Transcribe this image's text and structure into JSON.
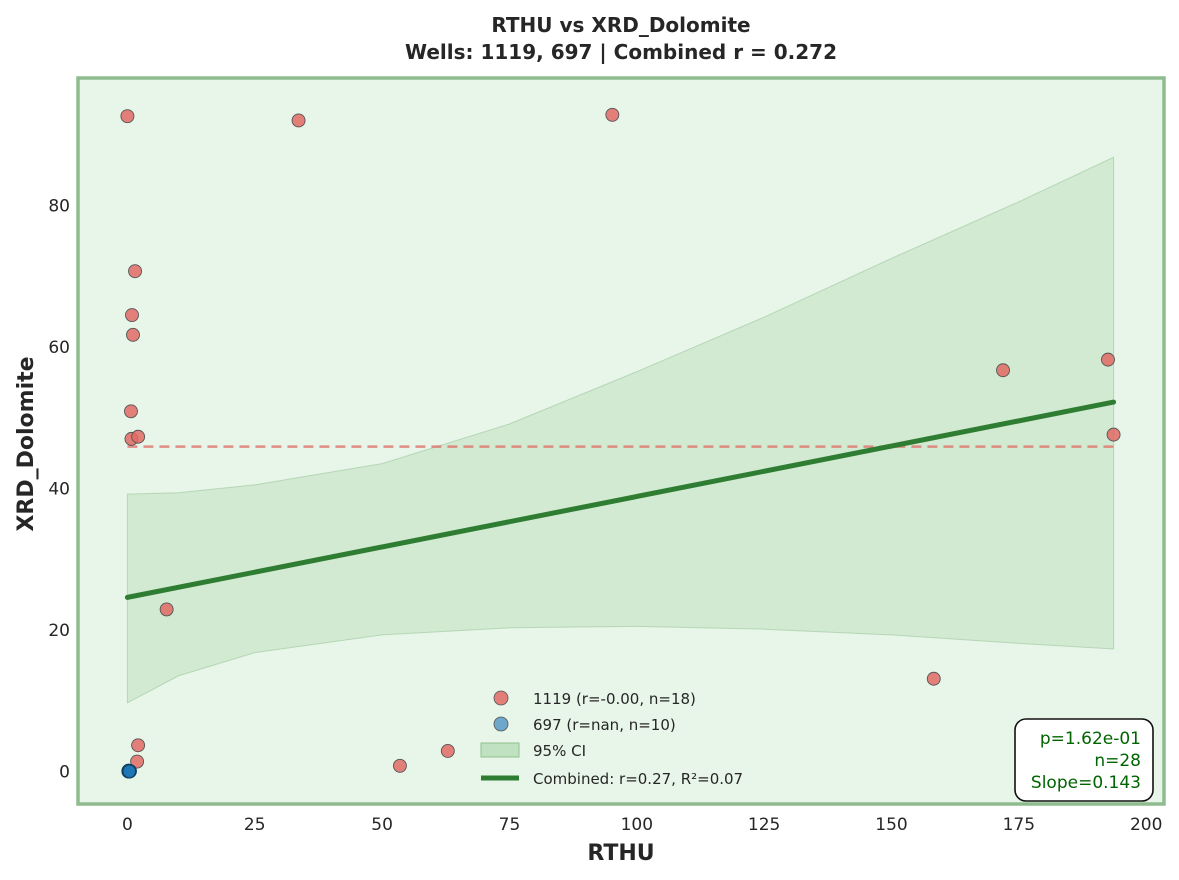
{
  "chart_data": {
    "type": "scatter",
    "title_line1": "RTHU vs XRD_Dolomite",
    "title_line2": "Wells: 1119, 697 | Combined r = 0.272",
    "xlabel": "RTHU",
    "ylabel": "XRD_Dolomite",
    "xlim": [
      -9.7,
      203.5
    ],
    "ylim": [
      -4.6,
      98.0
    ],
    "xticks": [
      0,
      25,
      50,
      75,
      100,
      125,
      150,
      175,
      200
    ],
    "yticks": [
      0,
      20,
      40,
      60,
      80
    ],
    "grid": false,
    "legend_position": "lower-center",
    "colors": {
      "background": "#e8f5e9",
      "frame": "#8fbc8f",
      "well_1119": "#e06a64",
      "well_697": "#1f77b4",
      "fit": "#2e7d32",
      "ci": "#a5d6a7",
      "mean_1119": "#e06a64"
    },
    "series": [
      {
        "name": "1119 (r=-0.00, n=18)",
        "well": "1119",
        "points": [
          [
            0.0,
            92.6
          ],
          [
            33.6,
            92.0
          ],
          [
            95.2,
            92.8
          ],
          [
            1.5,
            70.7
          ],
          [
            0.9,
            64.5
          ],
          [
            1.1,
            61.7
          ],
          [
            0.7,
            50.9
          ],
          [
            0.8,
            47.0
          ],
          [
            2.1,
            47.3
          ],
          [
            7.7,
            22.9
          ],
          [
            2.1,
            3.7
          ],
          [
            1.9,
            1.4
          ],
          [
            53.5,
            0.8
          ],
          [
            62.9,
            2.9
          ],
          [
            158.3,
            13.1
          ],
          [
            171.9,
            56.7
          ],
          [
            192.5,
            58.2
          ],
          [
            193.6,
            47.6
          ]
        ]
      },
      {
        "name": "697 (r=nan, n=10)",
        "well": "697",
        "points": [
          [
            0.2,
            0.0
          ],
          [
            0.25,
            0.05
          ],
          [
            0.3,
            0.0
          ],
          [
            0.35,
            0.05
          ],
          [
            0.4,
            0.0
          ],
          [
            0.3,
            0.1
          ],
          [
            0.45,
            0.0
          ],
          [
            0.2,
            0.1
          ],
          [
            0.5,
            0.05
          ],
          [
            0.35,
            0.0
          ]
        ]
      }
    ],
    "mean_line_1119": {
      "x": [
        0,
        193.6
      ],
      "y": 45.9
    },
    "fit_line": {
      "x": [
        0,
        193.6
      ],
      "y": [
        24.6,
        52.2
      ]
    },
    "confidence_band": {
      "x": [
        0,
        10,
        25,
        50,
        75,
        100,
        125,
        150,
        175,
        193.6
      ],
      "lower": [
        9.7,
        13.5,
        16.8,
        19.3,
        20.3,
        20.5,
        20.1,
        19.3,
        18.1,
        17.3
      ],
      "upper": [
        39.2,
        39.4,
        40.5,
        43.5,
        49.1,
        56.5,
        64.2,
        72.5,
        80.5,
        86.8
      ]
    },
    "legend": {
      "well_1119": "1119 (r=-0.00, n=18)",
      "well_697": "697 (r=nan, n=10)",
      "ci": "95% CI",
      "fit": "Combined: r=0.27, R²=0.07"
    },
    "stats": {
      "p": "p=1.62e-01",
      "n": "n=28",
      "slope": "Slope=0.143"
    }
  }
}
